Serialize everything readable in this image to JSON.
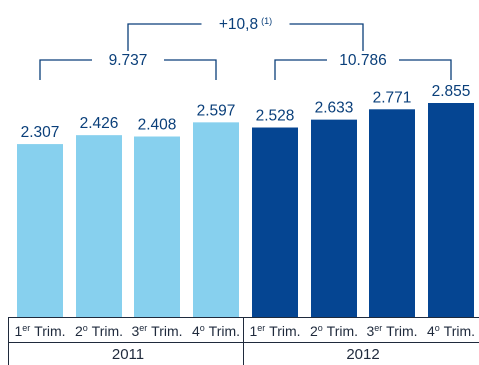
{
  "chart_data": {
    "type": "bar",
    "title": "",
    "xlabel": "",
    "ylabel": "",
    "ylim": [
      0,
      2855
    ],
    "grid": false,
    "legend": "none",
    "categories": [
      {
        "prefix": "1",
        "sup": "er",
        "text": "Trim."
      },
      {
        "prefix": "2",
        "sup": "o",
        "text": "Trim."
      },
      {
        "prefix": "3",
        "sup": "er",
        "text": "Trim."
      },
      {
        "prefix": "4",
        "sup": "o",
        "text": "Trim."
      },
      {
        "prefix": "1",
        "sup": "er",
        "text": "Trim."
      },
      {
        "prefix": "2",
        "sup": "o",
        "text": "Trim."
      },
      {
        "prefix": "3",
        "sup": "er",
        "text": "Trim."
      },
      {
        "prefix": "4",
        "sup": "o",
        "text": "Trim."
      }
    ],
    "values": [
      2307,
      2426,
      2408,
      2597,
      2528,
      2633,
      2771,
      2855
    ],
    "value_labels": [
      "2.307",
      "2.426",
      "2.408",
      "2.597",
      "2.528",
      "2.633",
      "2.771",
      "2.855"
    ],
    "groups": [
      {
        "label": "2011",
        "total_label": "9.737",
        "start": 0,
        "end": 3,
        "color": "#87d0ee"
      },
      {
        "label": "2012",
        "total_label": "10.786",
        "start": 4,
        "end": 7,
        "color": "#054592"
      }
    ],
    "growth": {
      "label": "+10,8",
      "note": "(1)"
    }
  }
}
